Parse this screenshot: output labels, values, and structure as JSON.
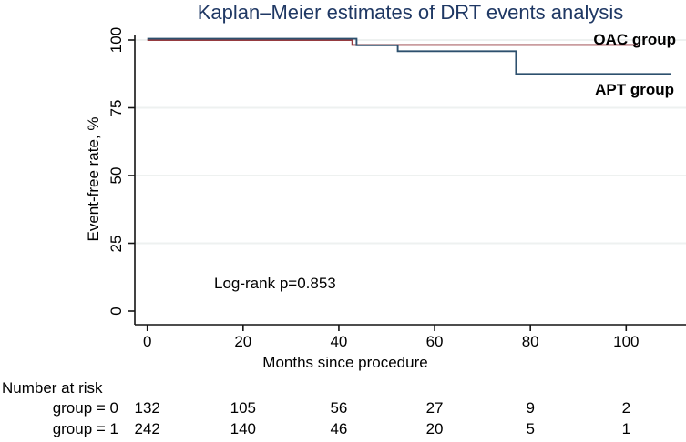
{
  "title": "Kaplan–Meier estimates of DRT events analysis",
  "annotation": {
    "log_rank": "Log-rank p=0.853"
  },
  "colors": {
    "title": "#1f3864",
    "oac_line": "#963b40",
    "apt_line": "#2d506e",
    "grid": "#eef1f0",
    "axis": "#141414",
    "text": "#000000"
  },
  "chart_data": {
    "type": "line",
    "subtype": "kaplan-meier-step",
    "title": "Kaplan–Meier estimates of DRT events analysis",
    "xlabel": "Months since procedure",
    "ylabel": "Event-free rate, %",
    "xlim": [
      0,
      112.5
    ],
    "ylim": [
      0,
      100
    ],
    "x_ticks": [
      0,
      20,
      40,
      60,
      80,
      100
    ],
    "y_ticks": [
      0,
      25,
      50,
      75,
      100
    ],
    "grid": "horizontal",
    "legend_position": "right-of-curve-ends",
    "series": [
      {
        "name": "OAC group",
        "color": "#963b40",
        "points": [
          [
            0,
            100
          ],
          [
            42.8,
            100
          ],
          [
            42.8,
            98.2
          ],
          [
            102.4,
            98.2
          ]
        ]
      },
      {
        "name": "APT group",
        "color": "#2d506e",
        "points": [
          [
            0,
            100
          ],
          [
            43.7,
            100
          ],
          [
            43.7,
            97.6
          ],
          [
            52.3,
            97.6
          ],
          [
            52.3,
            95.4
          ],
          [
            77,
            95.4
          ],
          [
            77,
            87
          ],
          [
            109.3,
            87
          ]
        ]
      }
    ],
    "annotations": [
      "Log-rank p=0.853"
    ]
  },
  "risk_table": {
    "heading": "Number at risk",
    "time_columns": [
      0,
      20,
      40,
      60,
      80,
      100
    ],
    "rows": [
      {
        "label": "group = 0",
        "counts": [
          "132",
          "105",
          "56",
          "27",
          "9",
          "2"
        ]
      },
      {
        "label": "group = 1",
        "counts": [
          "242",
          "140",
          "46",
          "20",
          "5",
          "1"
        ]
      }
    ]
  }
}
